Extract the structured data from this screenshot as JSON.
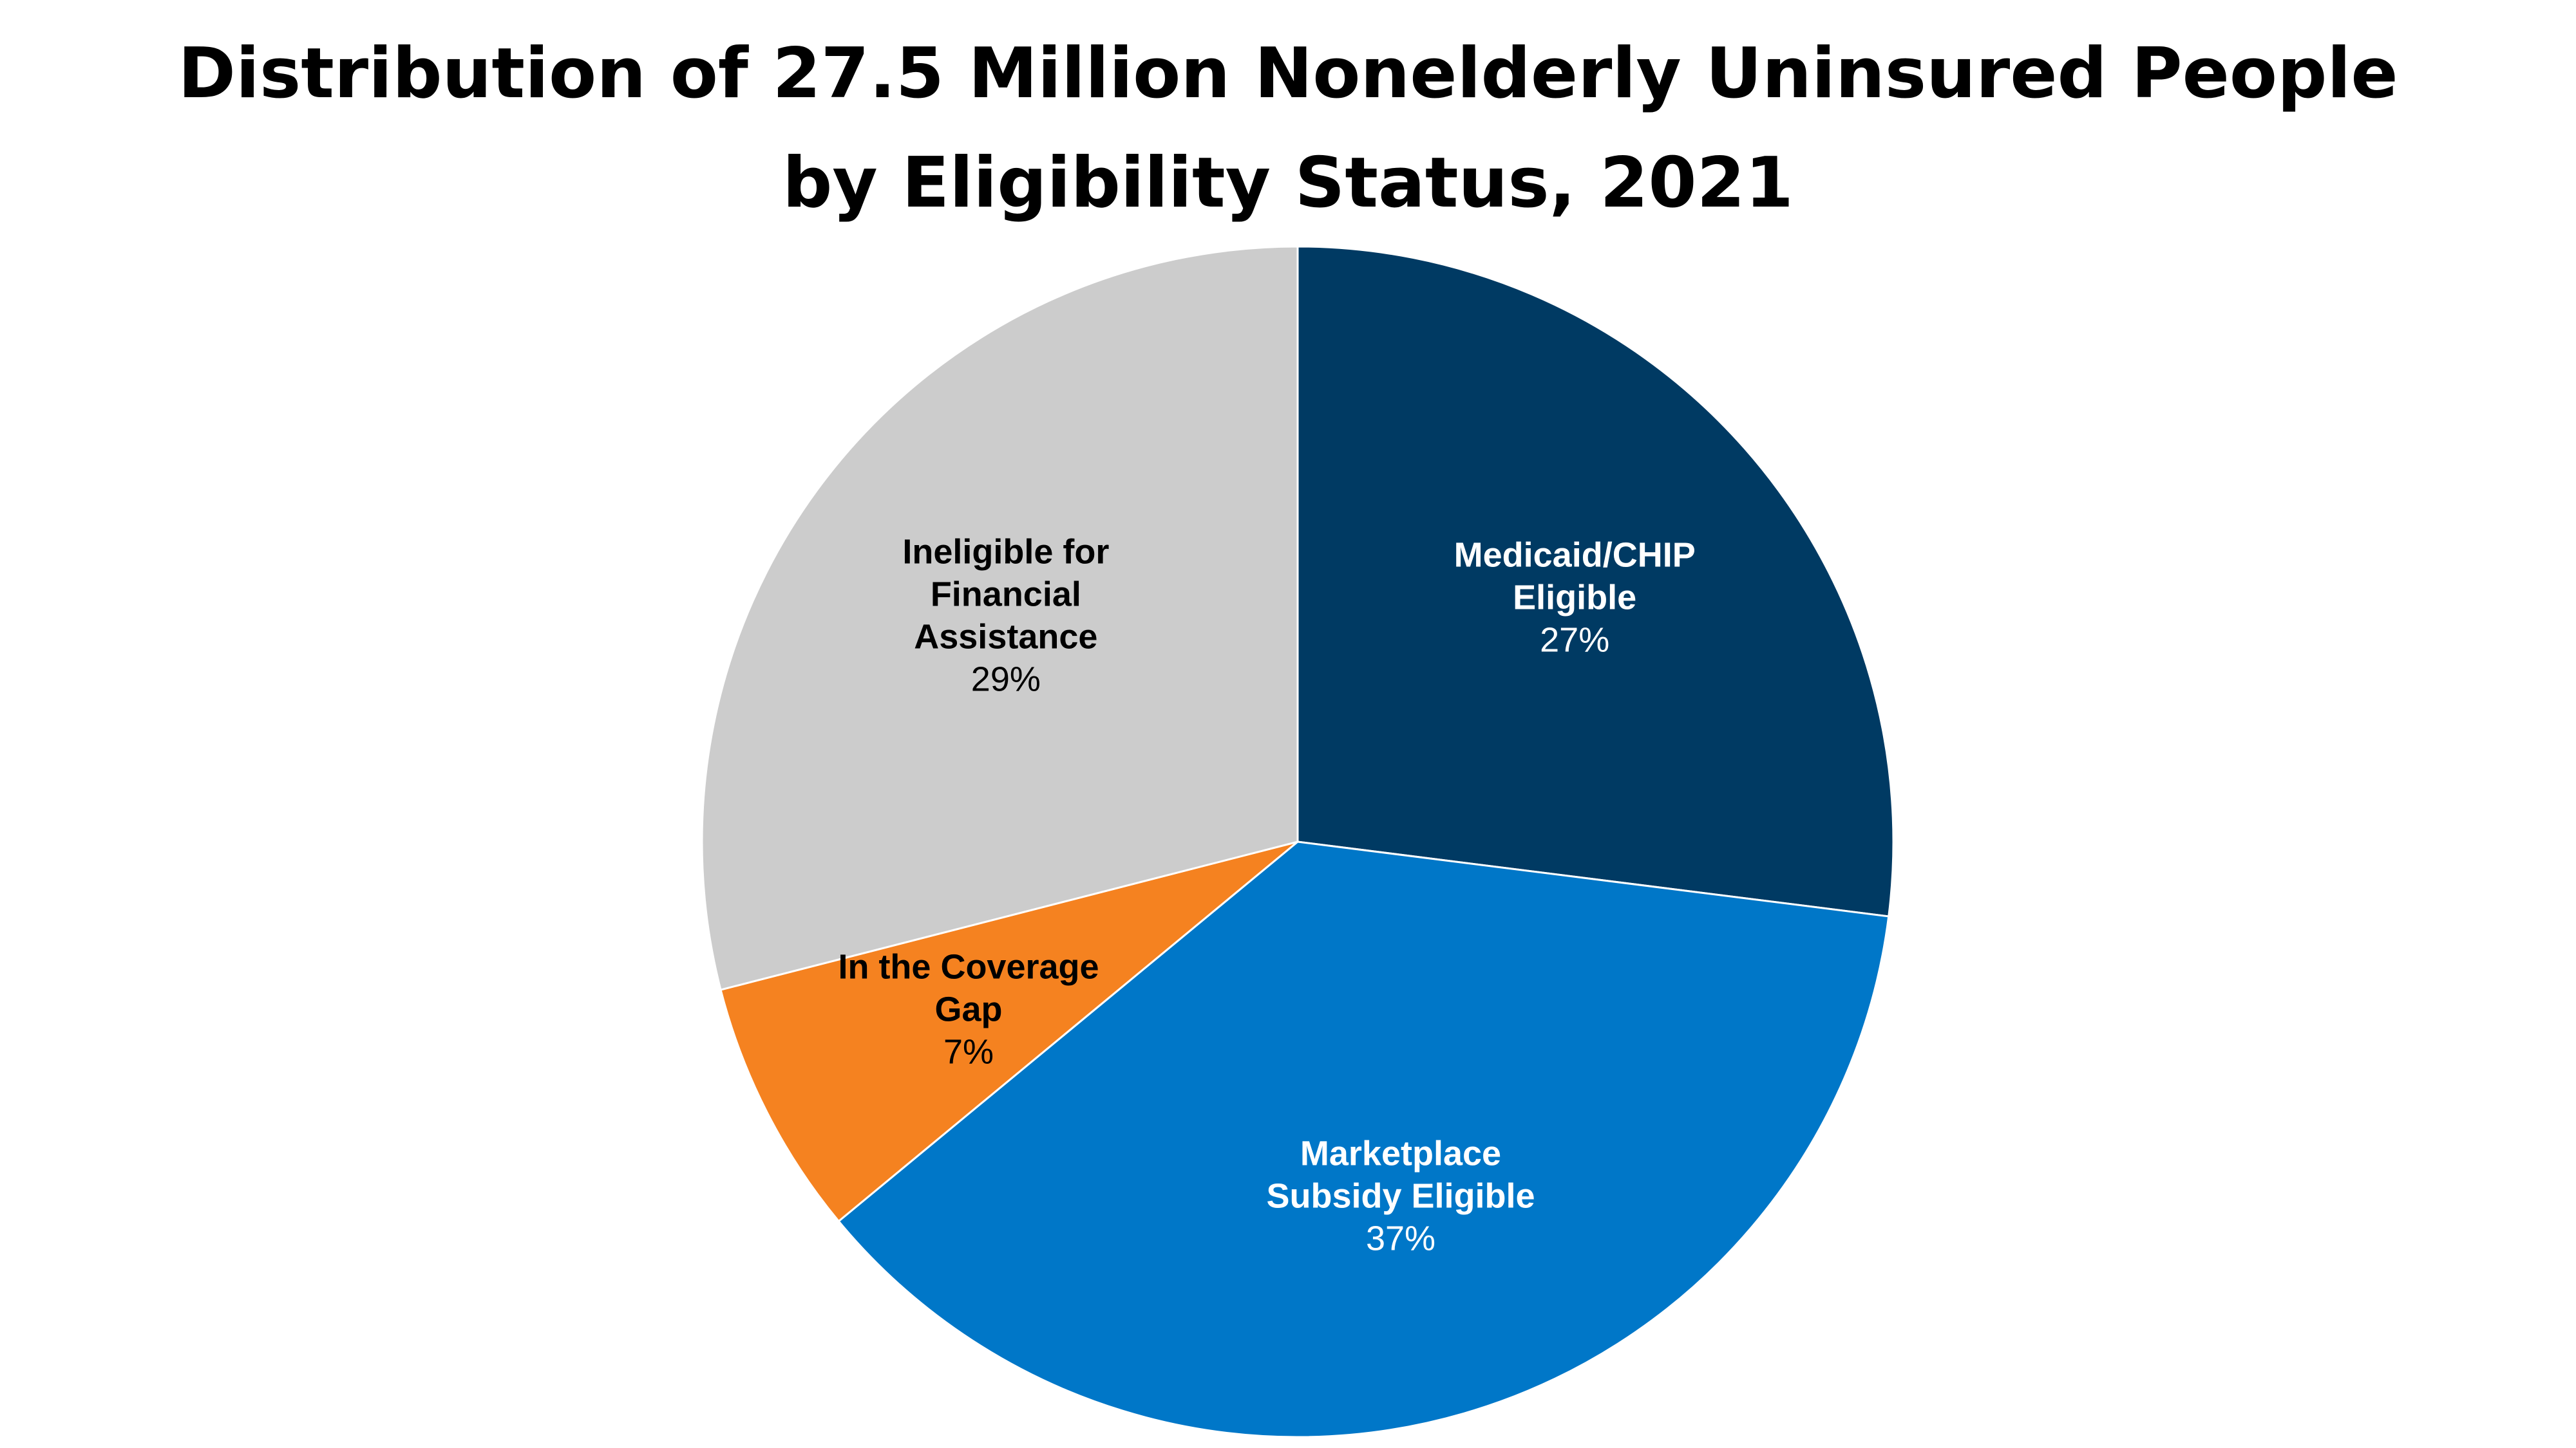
{
  "title": {
    "line1": "Distribution of 27.5 Million Nonelderly Uninsured People",
    "line2": "by Eligibility Status, 2021"
  },
  "chart_data": {
    "type": "pie",
    "title": "Distribution of 27.5 Million Nonelderly Uninsured People by Eligibility Status, 2021",
    "start_angle_deg": 0,
    "direction": "clockwise",
    "legend": "none",
    "slices": [
      {
        "label_lines": [
          "Medicaid/CHIP",
          "Eligible"
        ],
        "value": 27,
        "value_label": "27%",
        "color": "#003a63",
        "text_color": "#ffffff"
      },
      {
        "label_lines": [
          "Marketplace",
          "Subsidy Eligible"
        ],
        "value": 37,
        "value_label": "37%",
        "color": "#0077c8",
        "text_color": "#ffffff"
      },
      {
        "label_lines": [
          "In the Coverage",
          "Gap"
        ],
        "value": 7,
        "value_label": "7%",
        "color": "#f58220",
        "text_color": "#000000"
      },
      {
        "label_lines": [
          "Ineligible for",
          "Financial",
          "Assistance"
        ],
        "value": 29,
        "value_label": "29%",
        "color": "#cccccc",
        "text_color": "#000000"
      }
    ]
  }
}
